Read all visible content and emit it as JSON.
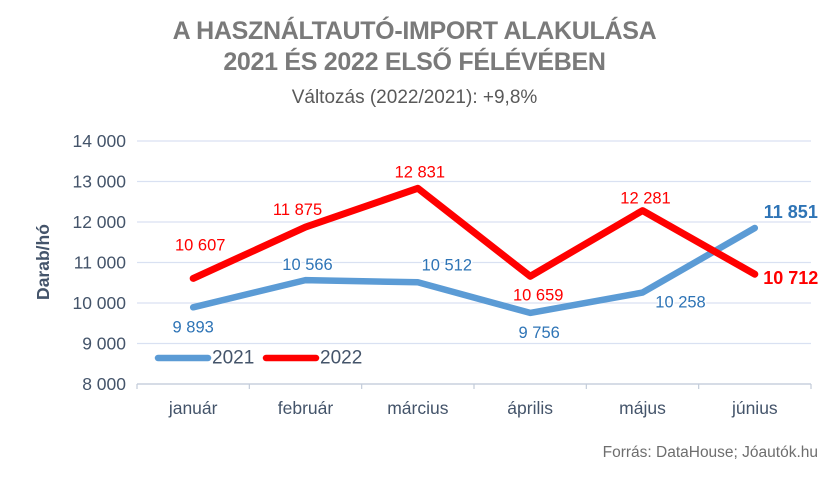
{
  "header": {
    "title_line1": "A HASZNÁLTAUTÓ-IMPORT ALAKULÁSA",
    "title_line2": "2021 ÉS 2022 ELSŐ FÉLÉVÉBEN",
    "subtitle": "Változás (2022/2021): +9,8%"
  },
  "source": "Forrás: DataHouse; Jóautók.hu",
  "colors": {
    "title": "#7A7A7A",
    "subtitle": "#595959",
    "axis_text": "#44546A",
    "gridline": "#D9E1F2",
    "axis_line": "#C3CCD9",
    "series_2021": "#5B9BD5",
    "series_2021_label": "#2E74B6",
    "series_2022": "#FF0000",
    "series_2022_label": "#FF0000",
    "background": "#FFFFFF"
  },
  "chart_data": {
    "type": "line",
    "title": "A HASZNÁLTAUTÓ-IMPORT ALAKULÁSA 2021 ÉS 2022 ELSŐ FÉLÉVÉBEN",
    "subtitle": "Változás (2022/2021): +9,8%",
    "categories": [
      "január",
      "február",
      "március",
      "április",
      "május",
      "június"
    ],
    "series": [
      {
        "name": "2021",
        "color": "#5B9BD5",
        "label_color": "#2E74B6",
        "values": [
          9893,
          10566,
          10512,
          9756,
          10258,
          11851
        ]
      },
      {
        "name": "2022",
        "color": "#FF0000",
        "label_color": "#FF0000",
        "values": [
          10607,
          11875,
          12831,
          10659,
          12281,
          10712
        ]
      }
    ],
    "xlabel": "",
    "ylabel": "Darab/hó",
    "ylim": [
      8000,
      14000
    ],
    "ytick_step": 1000,
    "ytick_labels": [
      "8 000",
      "9 000",
      "10 000",
      "11 000",
      "12 000",
      "13 000",
      "14 000"
    ],
    "grid": true,
    "legend_position": "bottom-left-inside",
    "data_labels": true,
    "number_format": "space-thousands",
    "source": "Forrás: DataHouse; Jóautók.hu"
  }
}
